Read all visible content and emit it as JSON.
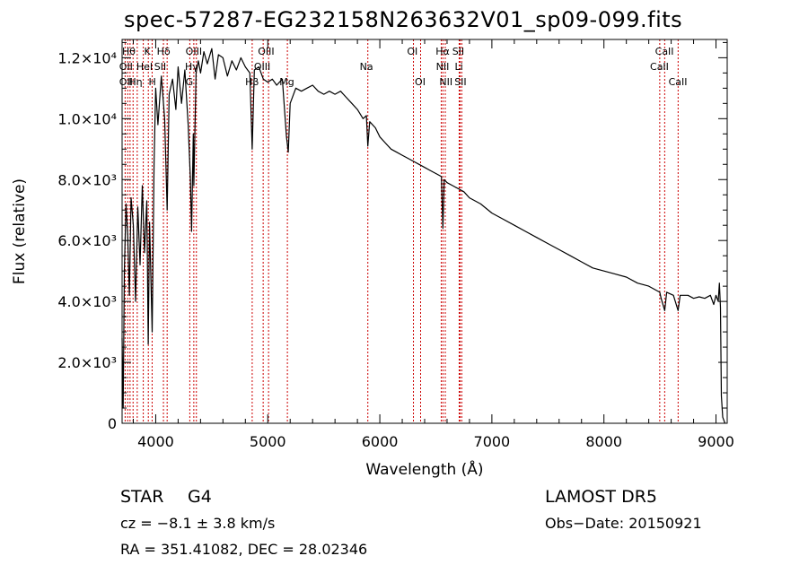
{
  "chart_data": {
    "type": "line",
    "title": "spec-57287-EG232158N263632V01_sp09-099.fits",
    "xlabel": "Wavelength (Å)",
    "ylabel": "Flux (relative)",
    "xlim": [
      3700,
      9100
    ],
    "ylim": [
      0,
      12600
    ],
    "x_ticks": [
      {
        "value": 4000,
        "label": "4000"
      },
      {
        "value": 5000,
        "label": "5000"
      },
      {
        "value": 6000,
        "label": "6000"
      },
      {
        "value": 7000,
        "label": "7000"
      },
      {
        "value": 8000,
        "label": "8000"
      },
      {
        "value": 9000,
        "label": "9000"
      }
    ],
    "y_ticks": [
      {
        "value": 0,
        "label": "0"
      },
      {
        "value": 2000,
        "label": "2.0×10³"
      },
      {
        "value": 4000,
        "label": "4.0×10³"
      },
      {
        "value": 6000,
        "label": "6.0×10³"
      },
      {
        "value": 8000,
        "label": "8.0×10³"
      },
      {
        "value": 10000,
        "label": "1.0×10⁴"
      },
      {
        "value": 12000,
        "label": "1.2×10⁴"
      }
    ],
    "grid": false,
    "series": [
      {
        "color": "#000000",
        "points": [
          [
            3700,
            2800
          ],
          [
            3710,
            500
          ],
          [
            3720,
            5000
          ],
          [
            3735,
            7200
          ],
          [
            3750,
            6200
          ],
          [
            3765,
            4200
          ],
          [
            3780,
            7400
          ],
          [
            3800,
            6500
          ],
          [
            3820,
            4000
          ],
          [
            3840,
            7100
          ],
          [
            3860,
            5200
          ],
          [
            3880,
            7800
          ],
          [
            3900,
            5600
          ],
          [
            3920,
            7300
          ],
          [
            3933,
            2600
          ],
          [
            3945,
            6600
          ],
          [
            3968,
            3000
          ],
          [
            3985,
            8500
          ],
          [
            4000,
            11000
          ],
          [
            4020,
            9800
          ],
          [
            4050,
            11400
          ],
          [
            4080,
            10000
          ],
          [
            4102,
            7000
          ],
          [
            4120,
            10800
          ],
          [
            4150,
            11300
          ],
          [
            4180,
            10300
          ],
          [
            4200,
            11700
          ],
          [
            4230,
            10500
          ],
          [
            4260,
            11600
          ],
          [
            4290,
            9800
          ],
          [
            4310,
            8000
          ],
          [
            4320,
            6300
          ],
          [
            4335,
            9500
          ],
          [
            4340,
            7800
          ],
          [
            4360,
            11500
          ],
          [
            4380,
            11900
          ],
          [
            4400,
            11500
          ],
          [
            4430,
            12200
          ],
          [
            4460,
            11800
          ],
          [
            4500,
            12300
          ],
          [
            4530,
            11300
          ],
          [
            4560,
            12100
          ],
          [
            4600,
            12000
          ],
          [
            4640,
            11400
          ],
          [
            4680,
            11900
          ],
          [
            4720,
            11600
          ],
          [
            4760,
            12000
          ],
          [
            4800,
            11700
          ],
          [
            4840,
            11500
          ],
          [
            4861,
            9000
          ],
          [
            4880,
            11600
          ],
          [
            4920,
            11700
          ],
          [
            4960,
            11300
          ],
          [
            5000,
            11200
          ],
          [
            5040,
            11300
          ],
          [
            5080,
            11100
          ],
          [
            5130,
            11300
          ],
          [
            5167,
            9400
          ],
          [
            5183,
            8900
          ],
          [
            5200,
            10500
          ],
          [
            5250,
            11000
          ],
          [
            5300,
            10900
          ],
          [
            5350,
            11000
          ],
          [
            5400,
            11100
          ],
          [
            5450,
            10900
          ],
          [
            5500,
            10800
          ],
          [
            5550,
            10900
          ],
          [
            5600,
            10800
          ],
          [
            5650,
            10900
          ],
          [
            5700,
            10700
          ],
          [
            5750,
            10500
          ],
          [
            5800,
            10300
          ],
          [
            5850,
            10000
          ],
          [
            5880,
            10100
          ],
          [
            5893,
            9100
          ],
          [
            5910,
            9900
          ],
          [
            5960,
            9700
          ],
          [
            6000,
            9400
          ],
          [
            6050,
            9200
          ],
          [
            6100,
            9000
          ],
          [
            6150,
            8900
          ],
          [
            6200,
            8800
          ],
          [
            6250,
            8700
          ],
          [
            6300,
            8600
          ],
          [
            6350,
            8500
          ],
          [
            6400,
            8400
          ],
          [
            6450,
            8300
          ],
          [
            6500,
            8200
          ],
          [
            6550,
            8100
          ],
          [
            6563,
            6400
          ],
          [
            6575,
            8000
          ],
          [
            6600,
            7900
          ],
          [
            6650,
            7800
          ],
          [
            6700,
            7700
          ],
          [
            6750,
            7600
          ],
          [
            6800,
            7400
          ],
          [
            6900,
            7200
          ],
          [
            7000,
            6900
          ],
          [
            7100,
            6700
          ],
          [
            7200,
            6500
          ],
          [
            7300,
            6300
          ],
          [
            7400,
            6100
          ],
          [
            7500,
            5900
          ],
          [
            7600,
            5700
          ],
          [
            7700,
            5500
          ],
          [
            7800,
            5300
          ],
          [
            7900,
            5100
          ],
          [
            8000,
            5000
          ],
          [
            8100,
            4900
          ],
          [
            8200,
            4800
          ],
          [
            8300,
            4600
          ],
          [
            8400,
            4500
          ],
          [
            8498,
            4300
          ],
          [
            8510,
            4100
          ],
          [
            8542,
            3700
          ],
          [
            8560,
            4300
          ],
          [
            8620,
            4200
          ],
          [
            8662,
            3700
          ],
          [
            8680,
            4200
          ],
          [
            8750,
            4200
          ],
          [
            8800,
            4100
          ],
          [
            8850,
            4150
          ],
          [
            8900,
            4100
          ],
          [
            8950,
            4200
          ],
          [
            8980,
            3900
          ],
          [
            9000,
            4200
          ],
          [
            9020,
            4000
          ],
          [
            9030,
            4600
          ],
          [
            9040,
            3800
          ],
          [
            9048,
            900
          ],
          [
            9060,
            200
          ],
          [
            9080,
            0
          ]
        ]
      }
    ],
    "line_marks": [
      {
        "x": 3727,
        "label": "OII"
      },
      {
        "x": 3750,
        "label": "Hθ"
      },
      {
        "x": 3771,
        "label": "Hη"
      },
      {
        "x": 3798,
        "label": "Hθ"
      },
      {
        "x": 3835,
        "label": "Hη"
      },
      {
        "x": 3889,
        "label": "HeI"
      },
      {
        "x": 3934,
        "label": "K"
      },
      {
        "x": 3968,
        "label": "H"
      },
      {
        "x": 4069,
        "label": "SII"
      },
      {
        "x": 4102,
        "label": "Hδ"
      },
      {
        "x": 4304,
        "label": "G"
      },
      {
        "x": 4340,
        "label": "Hγ"
      },
      {
        "x": 4363,
        "label": "OIII"
      },
      {
        "x": 4861,
        "label": "Hβ"
      },
      {
        "x": 4959,
        "label": "OIII"
      },
      {
        "x": 5007,
        "label": "OIII"
      },
      {
        "x": 5175,
        "label": "Mg"
      },
      {
        "x": 5893,
        "label": "Na"
      },
      {
        "x": 6300,
        "label": "OI"
      },
      {
        "x": 6364,
        "label": "OI"
      },
      {
        "x": 6548,
        "label": "NII"
      },
      {
        "x": 6563,
        "label": "Hα"
      },
      {
        "x": 6584,
        "label": "NII"
      },
      {
        "x": 6708,
        "label": "Li"
      },
      {
        "x": 6716,
        "label": "SII"
      },
      {
        "x": 6731,
        "label": "SII"
      },
      {
        "x": 8498,
        "label": "CaII"
      },
      {
        "x": 8542,
        "label": "CaII"
      },
      {
        "x": 8662,
        "label": "CaII"
      }
    ],
    "mark_color": "#cc0000",
    "line_labels": [
      {
        "text": "Hθ",
        "x": 3760,
        "row": 0
      },
      {
        "text": "K",
        "x": 3925,
        "row": 0
      },
      {
        "text": "Hδ",
        "x": 4070,
        "row": 0
      },
      {
        "text": "OIII",
        "x": 4340,
        "row": 0
      },
      {
        "text": "OIII",
        "x": 4985,
        "row": 0
      },
      {
        "text": "OI",
        "x": 6290,
        "row": 0
      },
      {
        "text": "Hα",
        "x": 6560,
        "row": 0
      },
      {
        "text": "SII",
        "x": 6700,
        "row": 0
      },
      {
        "text": "CaII",
        "x": 8540,
        "row": 0
      },
      {
        "text": "OII",
        "x": 3735,
        "row": 1
      },
      {
        "text": "HeI",
        "x": 3900,
        "row": 1
      },
      {
        "text": "SII",
        "x": 4040,
        "row": 1
      },
      {
        "text": "Hγ",
        "x": 4320,
        "row": 1
      },
      {
        "text": "OIII",
        "x": 4950,
        "row": 1
      },
      {
        "text": "Na",
        "x": 5880,
        "row": 1
      },
      {
        "text": "NII",
        "x": 6560,
        "row": 1
      },
      {
        "text": "Li",
        "x": 6705,
        "row": 1
      },
      {
        "text": "CaII",
        "x": 8495,
        "row": 1
      },
      {
        "text": "OII",
        "x": 3735,
        "row": 2
      },
      {
        "text": "Hη",
        "x": 3820,
        "row": 2
      },
      {
        "text": "H",
        "x": 3970,
        "row": 2
      },
      {
        "text": "G",
        "x": 4300,
        "row": 2
      },
      {
        "text": "Hβ",
        "x": 4860,
        "row": 2
      },
      {
        "text": "Mg",
        "x": 5170,
        "row": 2
      },
      {
        "text": "OI",
        "x": 6360,
        "row": 2
      },
      {
        "text": "NII",
        "x": 6590,
        "row": 2
      },
      {
        "text": "SII",
        "x": 6720,
        "row": 2
      },
      {
        "text": "CaII",
        "x": 8660,
        "row": 2
      }
    ]
  },
  "info": {
    "object_class": "STAR",
    "subclass": "G4",
    "survey": "LAMOST  DR5",
    "velocity": "cz = −8.1 ± 3.8 km/s",
    "obs_date": "Obs−Date: 20150921",
    "coords": "RA = 351.41082, DEC =  28.02346"
  }
}
